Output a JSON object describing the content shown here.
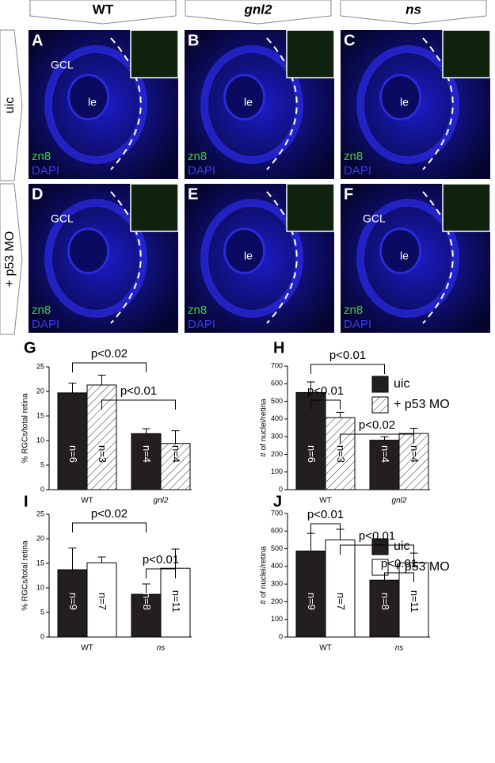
{
  "columns": [
    "WT",
    "gnl2",
    "ns"
  ],
  "rows": [
    "uic",
    "+ p53 MO"
  ],
  "panels": [
    {
      "letter": "A",
      "labels": [
        "GCL",
        "le",
        "zn8",
        "DAPI"
      ]
    },
    {
      "letter": "B",
      "labels": [
        "le",
        "zn8",
        "DAPI"
      ]
    },
    {
      "letter": "C",
      "labels": [
        "le",
        "zn8",
        "DAPI"
      ]
    },
    {
      "letter": "D",
      "labels": [
        "GCL",
        "zn8",
        "DAPI"
      ]
    },
    {
      "letter": "E",
      "labels": [
        "le",
        "zn8",
        "DAPI"
      ]
    },
    {
      "letter": "F",
      "labels": [
        "GCL",
        "le",
        "zn8",
        "DAPI"
      ]
    }
  ],
  "chart_data": [
    {
      "type": "bar",
      "title": "G",
      "y_label": "% RGCs/total retina",
      "categories": [
        "WT",
        "gnl2"
      ],
      "ylim": [
        0,
        25
      ],
      "yticks": [
        0,
        5,
        10,
        15,
        20,
        25
      ],
      "legend": false,
      "series": [
        {
          "name": "uic",
          "color": "#231f20",
          "hatch": false,
          "values": [
            19.7,
            11.4
          ],
          "errors": [
            2.0,
            1.0
          ],
          "n_labels": [
            "n=6",
            "n=4"
          ]
        },
        {
          "name": "+ p53 MO",
          "color": "#ffffff",
          "hatch": true,
          "values": [
            21.3,
            9.4
          ],
          "errors": [
            2.0,
            2.6
          ],
          "n_labels": [
            "n=3",
            "n=4"
          ]
        }
      ],
      "annotations": [
        "p<0.02",
        "p<0.01"
      ]
    },
    {
      "type": "bar",
      "title": "H",
      "y_label": "# of nuclei/retina",
      "categories": [
        "WT",
        "gnl2"
      ],
      "ylim": [
        0,
        700
      ],
      "yticks": [
        0,
        100,
        200,
        300,
        400,
        500,
        600,
        700
      ],
      "legend": true,
      "series": [
        {
          "name": "uic",
          "color": "#231f20",
          "hatch": false,
          "values": [
            550,
            280
          ],
          "errors": [
            60,
            20
          ],
          "n_labels": [
            "n=6",
            "n=4"
          ]
        },
        {
          "name": "+ p53 MO",
          "color": "#ffffff",
          "hatch": true,
          "values": [
            408,
            318
          ],
          "errors": [
            30,
            30
          ],
          "n_labels": [
            "n=3",
            "n=4"
          ]
        }
      ],
      "annotations": [
        "p<0.01",
        "p<0.01",
        "p<0.02"
      ]
    },
    {
      "type": "bar",
      "title": "I",
      "y_label": "% RGCs/total retina",
      "categories": [
        "WT",
        "ns"
      ],
      "ylim": [
        0,
        25
      ],
      "yticks": [
        0,
        5,
        10,
        15,
        20,
        25
      ],
      "legend": false,
      "series": [
        {
          "name": "uic",
          "color": "#231f20",
          "hatch": false,
          "values": [
            13.7,
            8.7
          ],
          "errors": [
            4.4,
            2.1
          ],
          "n_labels": [
            "n=9",
            "n=8"
          ]
        },
        {
          "name": "+ p53 MO",
          "color": "#ffffff",
          "hatch": false,
          "values": [
            15.1,
            14.0
          ],
          "errors": [
            1.2,
            3.9
          ],
          "n_labels": [
            "n=7",
            "n=11"
          ]
        }
      ],
      "annotations": [
        "p<0.02",
        "p<0.01"
      ]
    },
    {
      "type": "bar",
      "title": "J",
      "y_label": "# of nuclei/retina",
      "categories": [
        "WT",
        "ns"
      ],
      "ylim": [
        0,
        700
      ],
      "yticks": [
        0,
        100,
        200,
        300,
        400,
        500,
        600,
        700
      ],
      "legend": true,
      "series": [
        {
          "name": "uic",
          "color": "#231f20",
          "hatch": false,
          "values": [
            487,
            322
          ],
          "errors": [
            100,
            55
          ],
          "n_labels": [
            "n=9",
            "n=8"
          ]
        },
        {
          "name": "+ p53 MO",
          "color": "#ffffff",
          "hatch": false,
          "values": [
            550,
            420
          ],
          "errors": [
            60,
            55
          ],
          "n_labels": [
            "n=7",
            "n=11"
          ]
        }
      ],
      "annotations": [
        "p<0.01",
        "p<0.01",
        "p<0.01"
      ]
    }
  ]
}
